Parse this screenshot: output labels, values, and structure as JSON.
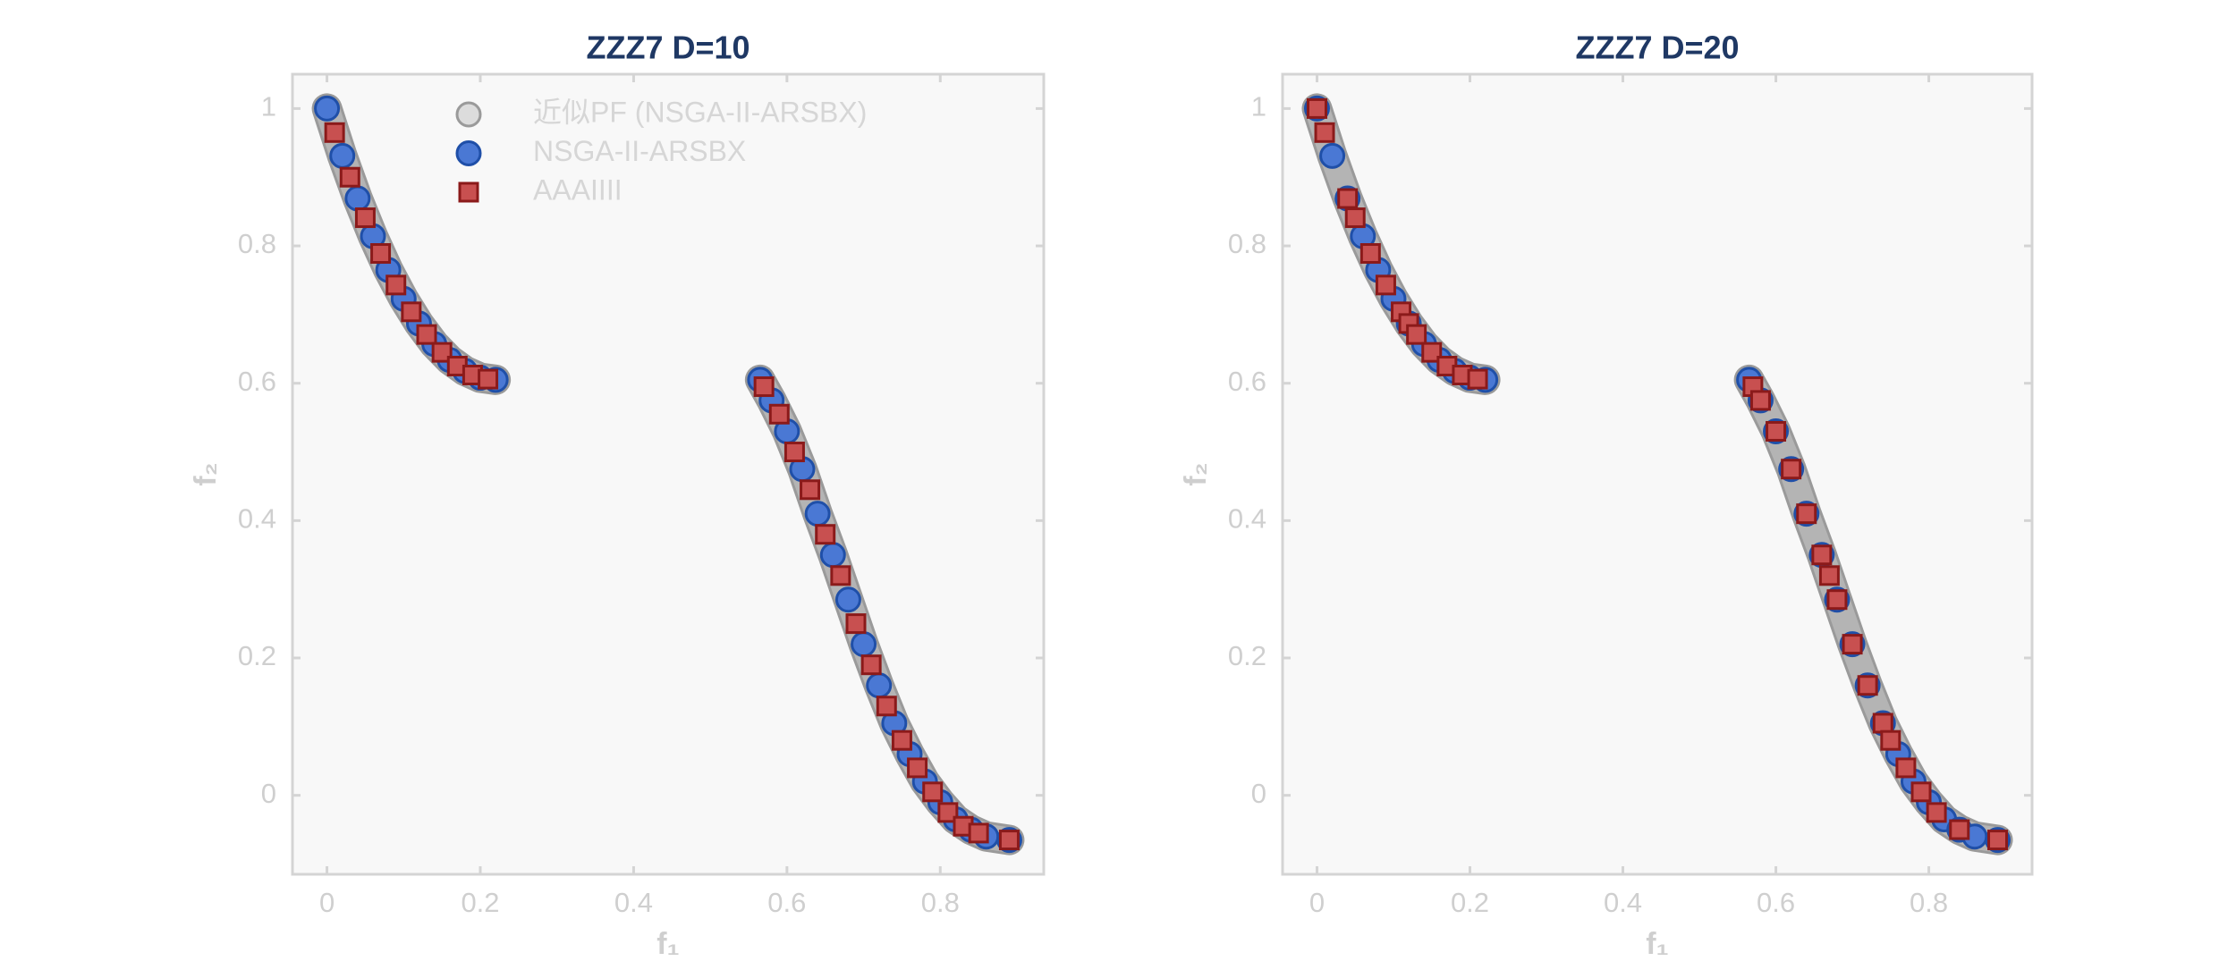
{
  "chart_data": [
    {
      "type": "scatter",
      "title": "ZZZ7 D=10",
      "xlabel": "f₁",
      "ylabel": "f₂",
      "xlim": [
        -0.045,
        0.935
      ],
      "ylim": [
        -0.115,
        1.05
      ],
      "xticks": [
        0,
        0.2,
        0.4,
        0.6,
        0.8
      ],
      "yticks": [
        0,
        0.2,
        0.4,
        0.6,
        0.8,
        1
      ],
      "legend": "upper left",
      "series": [
        {
          "name": "近似PF (NSGA-II-ARSBX)",
          "color": "#b4b4b4",
          "marker": "band",
          "x": [
            0,
            0.02,
            0.04,
            0.06,
            0.08,
            0.1,
            0.12,
            0.14,
            0.16,
            0.18,
            0.2,
            0.22,
            null,
            0.565,
            0.58,
            0.6,
            0.62,
            0.64,
            0.66,
            0.68,
            0.7,
            0.72,
            0.74,
            0.76,
            0.78,
            0.8,
            0.82,
            0.84,
            0.86,
            0.89
          ],
          "values": [
            1.0,
            0.931,
            0.869,
            0.814,
            0.765,
            0.723,
            0.687,
            0.657,
            0.634,
            0.618,
            0.608,
            0.605,
            null,
            0.605,
            0.575,
            0.53,
            0.475,
            0.41,
            0.35,
            0.285,
            0.22,
            0.16,
            0.105,
            0.06,
            0.02,
            -0.01,
            -0.035,
            -0.05,
            -0.06,
            -0.065
          ]
        },
        {
          "name": "NSGA-II-ARSBX",
          "color": "#4a78d4",
          "marker": "circle",
          "x": [
            0,
            0.02,
            0.04,
            0.06,
            0.08,
            0.1,
            0.12,
            0.14,
            0.16,
            0.18,
            0.2,
            0.22,
            0.565,
            0.58,
            0.6,
            0.62,
            0.64,
            0.66,
            0.68,
            0.7,
            0.72,
            0.74,
            0.76,
            0.78,
            0.8,
            0.82,
            0.84,
            0.86,
            0.89
          ],
          "values": [
            1.0,
            0.931,
            0.869,
            0.814,
            0.765,
            0.723,
            0.687,
            0.657,
            0.634,
            0.618,
            0.608,
            0.605,
            0.605,
            0.575,
            0.53,
            0.475,
            0.41,
            0.35,
            0.285,
            0.22,
            0.16,
            0.105,
            0.06,
            0.02,
            -0.01,
            -0.035,
            -0.05,
            -0.06,
            -0.065
          ]
        },
        {
          "name": "AAAIIII",
          "color": "#c85050",
          "marker": "square",
          "x": [
            0.01,
            0.03,
            0.05,
            0.07,
            0.09,
            0.11,
            0.13,
            0.15,
            0.17,
            0.19,
            0.21,
            0.57,
            0.59,
            0.61,
            0.63,
            0.65,
            0.67,
            0.69,
            0.71,
            0.73,
            0.75,
            0.77,
            0.79,
            0.81,
            0.83,
            0.85,
            0.89
          ],
          "values": [
            0.965,
            0.9,
            0.841,
            0.789,
            0.743,
            0.704,
            0.671,
            0.645,
            0.625,
            0.612,
            0.606,
            0.595,
            0.555,
            0.5,
            0.445,
            0.38,
            0.32,
            0.25,
            0.19,
            0.13,
            0.08,
            0.04,
            0.005,
            -0.025,
            -0.045,
            -0.055,
            -0.065
          ]
        }
      ]
    },
    {
      "type": "scatter",
      "title": "ZZZ7 D=20",
      "xlabel": "f₁",
      "ylabel": "f₂",
      "xlim": [
        -0.045,
        0.935
      ],
      "ylim": [
        -0.115,
        1.05
      ],
      "xticks": [
        0,
        0.2,
        0.4,
        0.6,
        0.8
      ],
      "yticks": [
        0,
        0.2,
        0.4,
        0.6,
        0.8,
        1
      ],
      "series": [
        {
          "color": "#b4b4b4",
          "marker": "band",
          "x": [
            0,
            0.02,
            0.04,
            0.06,
            0.08,
            0.1,
            0.12,
            0.14,
            0.16,
            0.18,
            0.2,
            0.22,
            null,
            0.565,
            0.58,
            0.6,
            0.62,
            0.64,
            0.66,
            0.68,
            0.7,
            0.72,
            0.74,
            0.76,
            0.78,
            0.8,
            0.82,
            0.84,
            0.86,
            0.89
          ],
          "values": [
            1.0,
            0.931,
            0.869,
            0.814,
            0.765,
            0.723,
            0.687,
            0.657,
            0.634,
            0.618,
            0.608,
            0.605,
            null,
            0.605,
            0.575,
            0.53,
            0.475,
            0.41,
            0.35,
            0.285,
            0.22,
            0.16,
            0.105,
            0.06,
            0.02,
            -0.01,
            -0.035,
            -0.05,
            -0.06,
            -0.065
          ]
        },
        {
          "color": "#4a78d4",
          "marker": "circle",
          "x": [
            0,
            0.02,
            0.04,
            0.06,
            0.08,
            0.1,
            0.12,
            0.14,
            0.16,
            0.18,
            0.2,
            0.22,
            0.565,
            0.58,
            0.6,
            0.62,
            0.64,
            0.66,
            0.68,
            0.7,
            0.72,
            0.74,
            0.76,
            0.78,
            0.8,
            0.82,
            0.84,
            0.86,
            0.89
          ],
          "values": [
            1.0,
            0.931,
            0.869,
            0.814,
            0.765,
            0.723,
            0.687,
            0.657,
            0.634,
            0.618,
            0.608,
            0.605,
            0.605,
            0.575,
            0.53,
            0.475,
            0.41,
            0.35,
            0.285,
            0.22,
            0.16,
            0.105,
            0.06,
            0.02,
            -0.01,
            -0.035,
            -0.05,
            -0.06,
            -0.065
          ]
        },
        {
          "color": "#c85050",
          "marker": "square",
          "x": [
            0,
            0.01,
            0.04,
            0.05,
            0.07,
            0.09,
            0.11,
            0.12,
            0.13,
            0.15,
            0.17,
            0.19,
            0.21,
            0.57,
            0.58,
            0.6,
            0.62,
            0.64,
            0.66,
            0.67,
            0.68,
            0.7,
            0.72,
            0.74,
            0.75,
            0.77,
            0.79,
            0.81,
            0.84,
            0.89
          ],
          "values": [
            1.0,
            0.965,
            0.869,
            0.841,
            0.789,
            0.743,
            0.704,
            0.687,
            0.671,
            0.645,
            0.625,
            0.612,
            0.606,
            0.595,
            0.575,
            0.53,
            0.475,
            0.41,
            0.35,
            0.32,
            0.285,
            0.22,
            0.16,
            0.105,
            0.08,
            0.04,
            0.005,
            -0.025,
            -0.05,
            -0.065
          ]
        }
      ]
    }
  ]
}
